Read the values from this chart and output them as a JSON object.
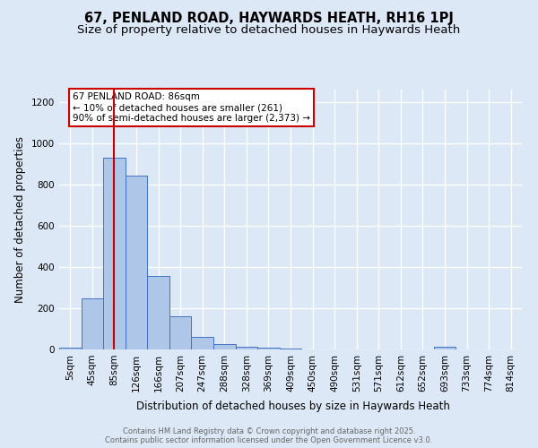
{
  "title": "67, PENLAND ROAD, HAYWARDS HEATH, RH16 1PJ",
  "subtitle": "Size of property relative to detached houses in Haywards Heath",
  "xlabel": "Distribution of detached houses by size in Haywards Heath",
  "ylabel": "Number of detached properties",
  "footnote1": "Contains HM Land Registry data © Crown copyright and database right 2025.",
  "footnote2": "Contains public sector information licensed under the Open Government Licence v3.0.",
  "bin_labels": [
    "5sqm",
    "45sqm",
    "85sqm",
    "126sqm",
    "166sqm",
    "207sqm",
    "247sqm",
    "288sqm",
    "328sqm",
    "369sqm",
    "409sqm",
    "450sqm",
    "490sqm",
    "531sqm",
    "571sqm",
    "612sqm",
    "652sqm",
    "693sqm",
    "733sqm",
    "774sqm",
    "814sqm"
  ],
  "bar_values": [
    10,
    248,
    930,
    845,
    355,
    160,
    62,
    28,
    14,
    10,
    5,
    0,
    0,
    0,
    0,
    0,
    0,
    14,
    0,
    0,
    0
  ],
  "bar_color": "#aec6e8",
  "bar_edge_color": "#4472c4",
  "vline_x_idx": 2,
  "vline_color": "#cc0000",
  "annotation_text": "67 PENLAND ROAD: 86sqm\n← 10% of detached houses are smaller (261)\n90% of semi-detached houses are larger (2,373) →",
  "annotation_box_color": "#ffffff",
  "annotation_box_edge": "#cc0000",
  "ylim": [
    0,
    1260
  ],
  "yticks": [
    0,
    200,
    400,
    600,
    800,
    1000,
    1200
  ],
  "background_color": "#dce8f5",
  "grid_color": "#ffffff",
  "title_fontsize": 10.5,
  "subtitle_fontsize": 9.5,
  "axis_label_fontsize": 8.5,
  "tick_fontsize": 7.5,
  "footnote_fontsize": 6.0,
  "footnote_color": "#666666"
}
